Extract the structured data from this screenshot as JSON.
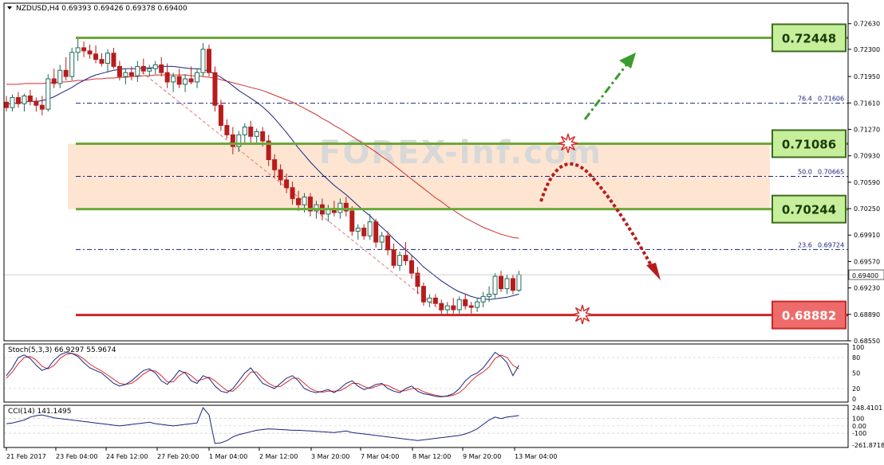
{
  "header": {
    "symbol_line": "NZDUSD,H4  0.69393 0.69426 0.69378 0.69400"
  },
  "watermark": "FOREX-inf.com",
  "chart_data": {
    "type": "candlestick",
    "symbol": "NZDUSD",
    "timeframe": "H4",
    "ohlc_header": {
      "open": 0.69393,
      "high": 0.69426,
      "low": 0.69378,
      "close": 0.694
    },
    "current_price": "0.69400",
    "ylim": [
      0.6855,
      0.7275
    ],
    "y_ticks": [
      "0.72630",
      "0.72300",
      "0.71950",
      "0.71610",
      "0.71270",
      "0.70930",
      "0.70590",
      "0.70250",
      "0.69910",
      "0.69570",
      "0.69230",
      "0.68890",
      "0.68550"
    ],
    "x_ticks": [
      "21 Feb 2017",
      "23 Feb 04:00",
      "24 Feb 12:00",
      "27 Feb 20:00",
      "1 Mar 04:00",
      "2 Mar 12:00",
      "3 Mar 20:00",
      "7 Mar 04:00",
      "8 Mar 12:00",
      "9 Mar 20:00",
      "13 Mar 04:00"
    ],
    "candles": [
      {
        "o": 0.7162,
        "h": 0.717,
        "l": 0.715,
        "c": 0.7155
      },
      {
        "o": 0.7155,
        "h": 0.7172,
        "l": 0.715,
        "c": 0.7168
      },
      {
        "o": 0.7168,
        "h": 0.7175,
        "l": 0.7155,
        "c": 0.716
      },
      {
        "o": 0.716,
        "h": 0.7173,
        "l": 0.715,
        "c": 0.717
      },
      {
        "o": 0.717,
        "h": 0.7178,
        "l": 0.7158,
        "c": 0.7163
      },
      {
        "o": 0.7163,
        "h": 0.7168,
        "l": 0.715,
        "c": 0.7158
      },
      {
        "o": 0.7158,
        "h": 0.717,
        "l": 0.7145,
        "c": 0.7153
      },
      {
        "o": 0.7153,
        "h": 0.7198,
        "l": 0.715,
        "c": 0.7192
      },
      {
        "o": 0.7192,
        "h": 0.7205,
        "l": 0.718,
        "c": 0.7186
      },
      {
        "o": 0.7186,
        "h": 0.721,
        "l": 0.718,
        "c": 0.7203
      },
      {
        "o": 0.7203,
        "h": 0.722,
        "l": 0.719,
        "c": 0.7195
      },
      {
        "o": 0.7195,
        "h": 0.7232,
        "l": 0.719,
        "c": 0.7226
      },
      {
        "o": 0.7226,
        "h": 0.7245,
        "l": 0.7215,
        "c": 0.7232
      },
      {
        "o": 0.7232,
        "h": 0.724,
        "l": 0.722,
        "c": 0.7228
      },
      {
        "o": 0.7228,
        "h": 0.7236,
        "l": 0.7218,
        "c": 0.7224
      },
      {
        "o": 0.7224,
        "h": 0.7235,
        "l": 0.7212,
        "c": 0.7217
      },
      {
        "o": 0.7217,
        "h": 0.7225,
        "l": 0.7208,
        "c": 0.7212
      },
      {
        "o": 0.7212,
        "h": 0.723,
        "l": 0.72,
        "c": 0.7225
      },
      {
        "o": 0.7225,
        "h": 0.7232,
        "l": 0.7205,
        "c": 0.7208
      },
      {
        "o": 0.7208,
        "h": 0.7215,
        "l": 0.719,
        "c": 0.7195
      },
      {
        "o": 0.7195,
        "h": 0.7205,
        "l": 0.7185,
        "c": 0.72
      },
      {
        "o": 0.72,
        "h": 0.7208,
        "l": 0.719,
        "c": 0.7196
      },
      {
        "o": 0.7196,
        "h": 0.7215,
        "l": 0.7188,
        "c": 0.7208
      },
      {
        "o": 0.7208,
        "h": 0.7218,
        "l": 0.7198,
        "c": 0.7202
      },
      {
        "o": 0.7202,
        "h": 0.721,
        "l": 0.7195,
        "c": 0.7205
      },
      {
        "o": 0.7205,
        "h": 0.7215,
        "l": 0.7198,
        "c": 0.721
      },
      {
        "o": 0.721,
        "h": 0.722,
        "l": 0.7195,
        "c": 0.72
      },
      {
        "o": 0.72,
        "h": 0.7212,
        "l": 0.718,
        "c": 0.7188
      },
      {
        "o": 0.7188,
        "h": 0.72,
        "l": 0.7175,
        "c": 0.7195
      },
      {
        "o": 0.7195,
        "h": 0.7205,
        "l": 0.718,
        "c": 0.7185
      },
      {
        "o": 0.7185,
        "h": 0.7198,
        "l": 0.7175,
        "c": 0.7192
      },
      {
        "o": 0.7192,
        "h": 0.7208,
        "l": 0.7185,
        "c": 0.7188
      },
      {
        "o": 0.7188,
        "h": 0.7205,
        "l": 0.718,
        "c": 0.72
      },
      {
        "o": 0.72,
        "h": 0.7238,
        "l": 0.7195,
        "c": 0.723
      },
      {
        "o": 0.723,
        "h": 0.7236,
        "l": 0.7195,
        "c": 0.72
      },
      {
        "o": 0.72,
        "h": 0.7208,
        "l": 0.715,
        "c": 0.7158
      },
      {
        "o": 0.7158,
        "h": 0.7165,
        "l": 0.7125,
        "c": 0.7132
      },
      {
        "o": 0.7132,
        "h": 0.714,
        "l": 0.7115,
        "c": 0.712
      },
      {
        "o": 0.712,
        "h": 0.713,
        "l": 0.7095,
        "c": 0.7105
      },
      {
        "o": 0.7105,
        "h": 0.7125,
        "l": 0.7098,
        "c": 0.712
      },
      {
        "o": 0.712,
        "h": 0.7135,
        "l": 0.711,
        "c": 0.713
      },
      {
        "o": 0.713,
        "h": 0.7138,
        "l": 0.711,
        "c": 0.7118
      },
      {
        "o": 0.7118,
        "h": 0.7128,
        "l": 0.711,
        "c": 0.7124
      },
      {
        "o": 0.7124,
        "h": 0.713,
        "l": 0.7105,
        "c": 0.7112
      },
      {
        "o": 0.7112,
        "h": 0.712,
        "l": 0.708,
        "c": 0.7088
      },
      {
        "o": 0.7088,
        "h": 0.7095,
        "l": 0.7065,
        "c": 0.7075
      },
      {
        "o": 0.7075,
        "h": 0.7082,
        "l": 0.7055,
        "c": 0.7062
      },
      {
        "o": 0.7062,
        "h": 0.707,
        "l": 0.7045,
        "c": 0.7052
      },
      {
        "o": 0.7052,
        "h": 0.706,
        "l": 0.703,
        "c": 0.7038
      },
      {
        "o": 0.7038,
        "h": 0.7048,
        "l": 0.7022,
        "c": 0.703
      },
      {
        "o": 0.703,
        "h": 0.7045,
        "l": 0.702,
        "c": 0.704
      },
      {
        "o": 0.704,
        "h": 0.7045,
        "l": 0.7015,
        "c": 0.7022
      },
      {
        "o": 0.7022,
        "h": 0.7035,
        "l": 0.7012,
        "c": 0.703
      },
      {
        "o": 0.703,
        "h": 0.7038,
        "l": 0.701,
        "c": 0.7018
      },
      {
        "o": 0.7018,
        "h": 0.703,
        "l": 0.7008,
        "c": 0.7025
      },
      {
        "o": 0.7025,
        "h": 0.7035,
        "l": 0.7015,
        "c": 0.702
      },
      {
        "o": 0.702,
        "h": 0.7038,
        "l": 0.7012,
        "c": 0.7032
      },
      {
        "o": 0.7032,
        "h": 0.704,
        "l": 0.7015,
        "c": 0.7022
      },
      {
        "o": 0.7022,
        "h": 0.7028,
        "l": 0.699,
        "c": 0.6996
      },
      {
        "o": 0.6996,
        "h": 0.7005,
        "l": 0.6985,
        "c": 0.7
      },
      {
        "o": 0.7,
        "h": 0.7005,
        "l": 0.6985,
        "c": 0.699
      },
      {
        "o": 0.699,
        "h": 0.7018,
        "l": 0.6985,
        "c": 0.7008
      },
      {
        "o": 0.7008,
        "h": 0.7012,
        "l": 0.6975,
        "c": 0.6982
      },
      {
        "o": 0.6982,
        "h": 0.6995,
        "l": 0.6972,
        "c": 0.699
      },
      {
        "o": 0.699,
        "h": 0.6996,
        "l": 0.6965,
        "c": 0.6972
      },
      {
        "o": 0.6972,
        "h": 0.698,
        "l": 0.6948,
        "c": 0.6952
      },
      {
        "o": 0.6952,
        "h": 0.697,
        "l": 0.6945,
        "c": 0.6965
      },
      {
        "o": 0.6965,
        "h": 0.6982,
        "l": 0.6952,
        "c": 0.6958
      },
      {
        "o": 0.6958,
        "h": 0.6965,
        "l": 0.6935,
        "c": 0.6942
      },
      {
        "o": 0.6942,
        "h": 0.695,
        "l": 0.6915,
        "c": 0.6925
      },
      {
        "o": 0.6925,
        "h": 0.693,
        "l": 0.69,
        "c": 0.6905
      },
      {
        "o": 0.6905,
        "h": 0.6915,
        "l": 0.6898,
        "c": 0.691
      },
      {
        "o": 0.691,
        "h": 0.6915,
        "l": 0.69,
        "c": 0.6903
      },
      {
        "o": 0.6903,
        "h": 0.6908,
        "l": 0.689,
        "c": 0.6895
      },
      {
        "o": 0.6895,
        "h": 0.6905,
        "l": 0.6888,
        "c": 0.69
      },
      {
        "o": 0.69,
        "h": 0.691,
        "l": 0.689,
        "c": 0.6895
      },
      {
        "o": 0.6895,
        "h": 0.6912,
        "l": 0.689,
        "c": 0.6908
      },
      {
        "o": 0.6908,
        "h": 0.6915,
        "l": 0.6895,
        "c": 0.69
      },
      {
        "o": 0.69,
        "h": 0.6905,
        "l": 0.689,
        "c": 0.6898
      },
      {
        "o": 0.6898,
        "h": 0.691,
        "l": 0.6892,
        "c": 0.6905
      },
      {
        "o": 0.6905,
        "h": 0.6918,
        "l": 0.6898,
        "c": 0.6912
      },
      {
        "o": 0.6912,
        "h": 0.6925,
        "l": 0.6905,
        "c": 0.6915
      },
      {
        "o": 0.6915,
        "h": 0.6942,
        "l": 0.691,
        "c": 0.6938
      },
      {
        "o": 0.6938,
        "h": 0.6945,
        "l": 0.6918,
        "c": 0.6922
      },
      {
        "o": 0.6922,
        "h": 0.694,
        "l": 0.6915,
        "c": 0.6935
      },
      {
        "o": 0.6935,
        "h": 0.694,
        "l": 0.6915,
        "c": 0.692
      },
      {
        "o": 0.692,
        "h": 0.6945,
        "l": 0.6918,
        "c": 0.694
      }
    ],
    "ma_fast": [
      0.716,
      0.716,
      0.7161,
      0.7162,
      0.7163,
      0.7163,
      0.7164,
      0.7166,
      0.7169,
      0.7173,
      0.7177,
      0.7181,
      0.7186,
      0.719,
      0.7194,
      0.7197,
      0.7199,
      0.7201,
      0.7203,
      0.7204,
      0.7205,
      0.7205,
      0.7205,
      0.7206,
      0.7206,
      0.7207,
      0.7208,
      0.7208,
      0.7208,
      0.7207,
      0.7206,
      0.7205,
      0.7205,
      0.7204,
      0.7202,
      0.7198,
      0.7194,
      0.7189,
      0.7183,
      0.7177,
      0.7172,
      0.7167,
      0.7162,
      0.7156,
      0.7149,
      0.7141,
      0.7132,
      0.7123,
      0.7113,
      0.7103,
      0.7094,
      0.7085,
      0.7077,
      0.7069,
      0.7062,
      0.7055,
      0.7049,
      0.7043,
      0.7036,
      0.7029,
      0.7022,
      0.7016,
      0.7008,
      0.7001,
      0.6994,
      0.6986,
      0.6979,
      0.6972,
      0.6965,
      0.6958,
      0.695,
      0.6944,
      0.6938,
      0.6932,
      0.6927,
      0.6922,
      0.6918,
      0.6915,
      0.6912,
      0.691,
      0.6909,
      0.6908,
      0.6909,
      0.691,
      0.6911,
      0.6913,
      0.6915
    ],
    "ma_slow": [
      0.7185,
      0.7185,
      0.7185,
      0.7186,
      0.7186,
      0.7186,
      0.7186,
      0.7187,
      0.7187,
      0.7188,
      0.7188,
      0.7189,
      0.719,
      0.719,
      0.7191,
      0.7192,
      0.7192,
      0.7193,
      0.7193,
      0.7194,
      0.7194,
      0.7195,
      0.7195,
      0.7196,
      0.7196,
      0.7197,
      0.7197,
      0.7197,
      0.7197,
      0.7197,
      0.7197,
      0.7196,
      0.7196,
      0.7195,
      0.7194,
      0.7193,
      0.7191,
      0.7189,
      0.7187,
      0.7185,
      0.7183,
      0.7181,
      0.7179,
      0.7177,
      0.7174,
      0.7171,
      0.7168,
      0.7165,
      0.7162,
      0.7158,
      0.7154,
      0.715,
      0.7146,
      0.7141,
      0.7137,
      0.7132,
      0.7128,
      0.7123,
      0.7118,
      0.7113,
      0.7108,
      0.7103,
      0.7098,
      0.7092,
      0.7087,
      0.7081,
      0.7075,
      0.7069,
      0.7063,
      0.7057,
      0.7051,
      0.7045,
      0.7039,
      0.7034,
      0.7028,
      0.7023,
      0.7018,
      0.7013,
      0.7009,
      0.7005,
      0.7001,
      0.6998,
      0.6995,
      0.6992,
      0.699,
      0.6988,
      0.6987
    ],
    "levels": [
      {
        "price": "0.72448",
        "value": 0.72448,
        "style": "green-solid",
        "label_box": true
      },
      {
        "price": "0.71086",
        "value": 0.71086,
        "style": "green-solid",
        "label_box": true
      },
      {
        "price": "0.70244",
        "value": 0.70244,
        "style": "green-solid",
        "label_box": true
      },
      {
        "price": "0.68882",
        "value": 0.68882,
        "style": "red-solid",
        "label_box": true
      }
    ],
    "fib_levels": [
      {
        "ratio": "76.4",
        "price": "0.71606",
        "value": 0.71606
      },
      {
        "ratio": "50.0",
        "price": "0.70665",
        "value": 0.70665
      },
      {
        "ratio": "23.6",
        "price": "0.69724",
        "value": 0.69724
      }
    ],
    "zone": {
      "top": 0.71086,
      "bottom": 0.70244,
      "color": "#fde5d2"
    },
    "colors": {
      "bull": "#1f6b5a",
      "bear": "#b71c1c",
      "ma_fast": "#1a237e",
      "ma_slow": "#d32f2f",
      "level_green": "#6aa938",
      "level_red": "#c62828",
      "fib": "#1a237e"
    },
    "stoch": {
      "label": "Stoch(5,3,3) 66.9297 55.9674",
      "ylim": [
        0,
        100
      ],
      "ticks": [
        "100",
        "80",
        "50",
        "20",
        "0"
      ],
      "main": [
        45,
        60,
        80,
        85,
        78,
        65,
        55,
        60,
        75,
        85,
        90,
        88,
        82,
        70,
        60,
        55,
        50,
        40,
        30,
        25,
        28,
        35,
        45,
        55,
        58,
        50,
        35,
        28,
        40,
        55,
        50,
        35,
        30,
        45,
        40,
        25,
        15,
        12,
        20,
        35,
        50,
        60,
        45,
        30,
        25,
        20,
        30,
        40,
        45,
        35,
        20,
        15,
        12,
        15,
        18,
        12,
        20,
        30,
        35,
        25,
        18,
        22,
        28,
        30,
        20,
        15,
        12,
        20,
        25,
        15,
        10,
        8,
        5,
        4,
        6,
        10,
        20,
        35,
        45,
        50,
        60,
        75,
        90,
        82,
        70,
        45,
        65
      ],
      "signal": [
        40,
        52,
        68,
        80,
        82,
        75,
        63,
        58,
        65,
        78,
        86,
        88,
        85,
        77,
        67,
        60,
        54,
        46,
        38,
        30,
        28,
        30,
        38,
        48,
        55,
        54,
        45,
        33,
        33,
        45,
        52,
        45,
        35,
        38,
        42,
        35,
        25,
        16,
        15,
        25,
        38,
        52,
        52,
        40,
        30,
        24,
        24,
        32,
        40,
        40,
        30,
        20,
        15,
        13,
        15,
        15,
        16,
        22,
        30,
        30,
        24,
        20,
        24,
        28,
        26,
        20,
        15,
        16,
        20,
        20,
        14,
        10,
        7,
        5,
        5,
        7,
        12,
        22,
        35,
        45,
        52,
        62,
        78,
        85,
        80,
        65,
        58
      ]
    },
    "cci": {
      "label": "CCI(14) 141.1495",
      "ticks": [
        "248.4101",
        "100",
        "0.00",
        "-100",
        "-261.8718"
      ],
      "ylim": [
        -261.8718,
        248.4101
      ],
      "values": [
        30,
        40,
        60,
        80,
        120,
        140,
        150,
        130,
        110,
        100,
        90,
        80,
        70,
        60,
        50,
        40,
        30,
        20,
        10,
        0,
        10,
        20,
        30,
        40,
        50,
        30,
        20,
        10,
        0,
        10,
        20,
        30,
        40,
        248,
        150,
        -240,
        -230,
        -200,
        -150,
        -120,
        -100,
        -80,
        -60,
        -50,
        -40,
        -45,
        -50,
        -55,
        -60,
        -60,
        -65,
        -70,
        -75,
        -80,
        -85,
        -90,
        -80,
        -70,
        -90,
        -100,
        -110,
        -120,
        -130,
        -140,
        -150,
        -160,
        -170,
        -180,
        -190,
        -200,
        -190,
        -180,
        -170,
        -160,
        -150,
        -140,
        -130,
        -110,
        -80,
        -40,
        20,
        80,
        120,
        100,
        120,
        130,
        141
      ]
    }
  }
}
